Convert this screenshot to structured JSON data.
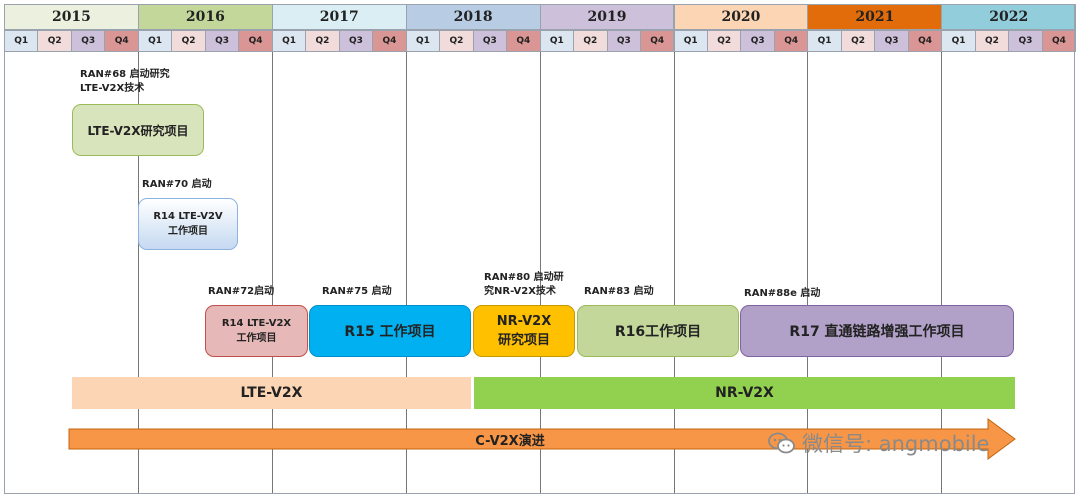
{
  "timeline": {
    "years": [
      {
        "label": "2015",
        "color": "#ebf1de"
      },
      {
        "label": "2016",
        "color": "#c4d79b"
      },
      {
        "label": "2017",
        "color": "#daeef3"
      },
      {
        "label": "2018",
        "color": "#b8cce4"
      },
      {
        "label": "2019",
        "color": "#ccc0da"
      },
      {
        "label": "2020",
        "color": "#fcd5b4"
      },
      {
        "label": "2021",
        "color": "#e26b0a"
      },
      {
        "label": "2022",
        "color": "#92cddc"
      }
    ],
    "quarters": [
      "Q1",
      "Q2",
      "Q3",
      "Q4"
    ],
    "quarter_colors": [
      "#dce6f1",
      "#f2dcdb",
      "#ccc0da",
      "#da9694"
    ]
  },
  "milestones": {
    "ran68": "RAN#68 启动研究\nLTE-V2X技术",
    "ran70": "RAN#70 启动",
    "ran72": "RAN#72启动",
    "ran75": "RAN#75 启动",
    "ran80": "RAN#80 启动研\n究NR-V2X技术",
    "ran83": "RAN#83 启动",
    "ran88e": "RAN#88e 启动"
  },
  "work_items": {
    "lte_v2x_study": {
      "label": "LTE-V2X研究项目",
      "color": "#d8e4bc"
    },
    "r14_lte_v2v": {
      "label": "R14 LTE-V2V\n工作项目",
      "color": "#c5d9f1"
    },
    "r14_lte_v2x": {
      "label": "R14 LTE-V2X\n工作项目",
      "color": "#e6b8b7"
    },
    "r15": {
      "label": "R15 工作项目",
      "color": "#00b0f0"
    },
    "nr_v2x_study": {
      "label": "NR-V2X\n研究项目",
      "color": "#ffc000"
    },
    "r16": {
      "label": "R16工作项目",
      "color": "#c4d79b"
    },
    "r17": {
      "label": "R17 直通链路增强工作项目",
      "color": "#b1a0c7"
    }
  },
  "bands": {
    "lte_v2x": {
      "label": "LTE-V2X",
      "color": "#fcd5b4"
    },
    "nr_v2x": {
      "label": "NR-V2X",
      "color": "#92d050"
    }
  },
  "evolution_arrow": {
    "label": "C-V2X演进",
    "color": "#f79646"
  },
  "watermark": {
    "text": "微信号: angmobile"
  }
}
